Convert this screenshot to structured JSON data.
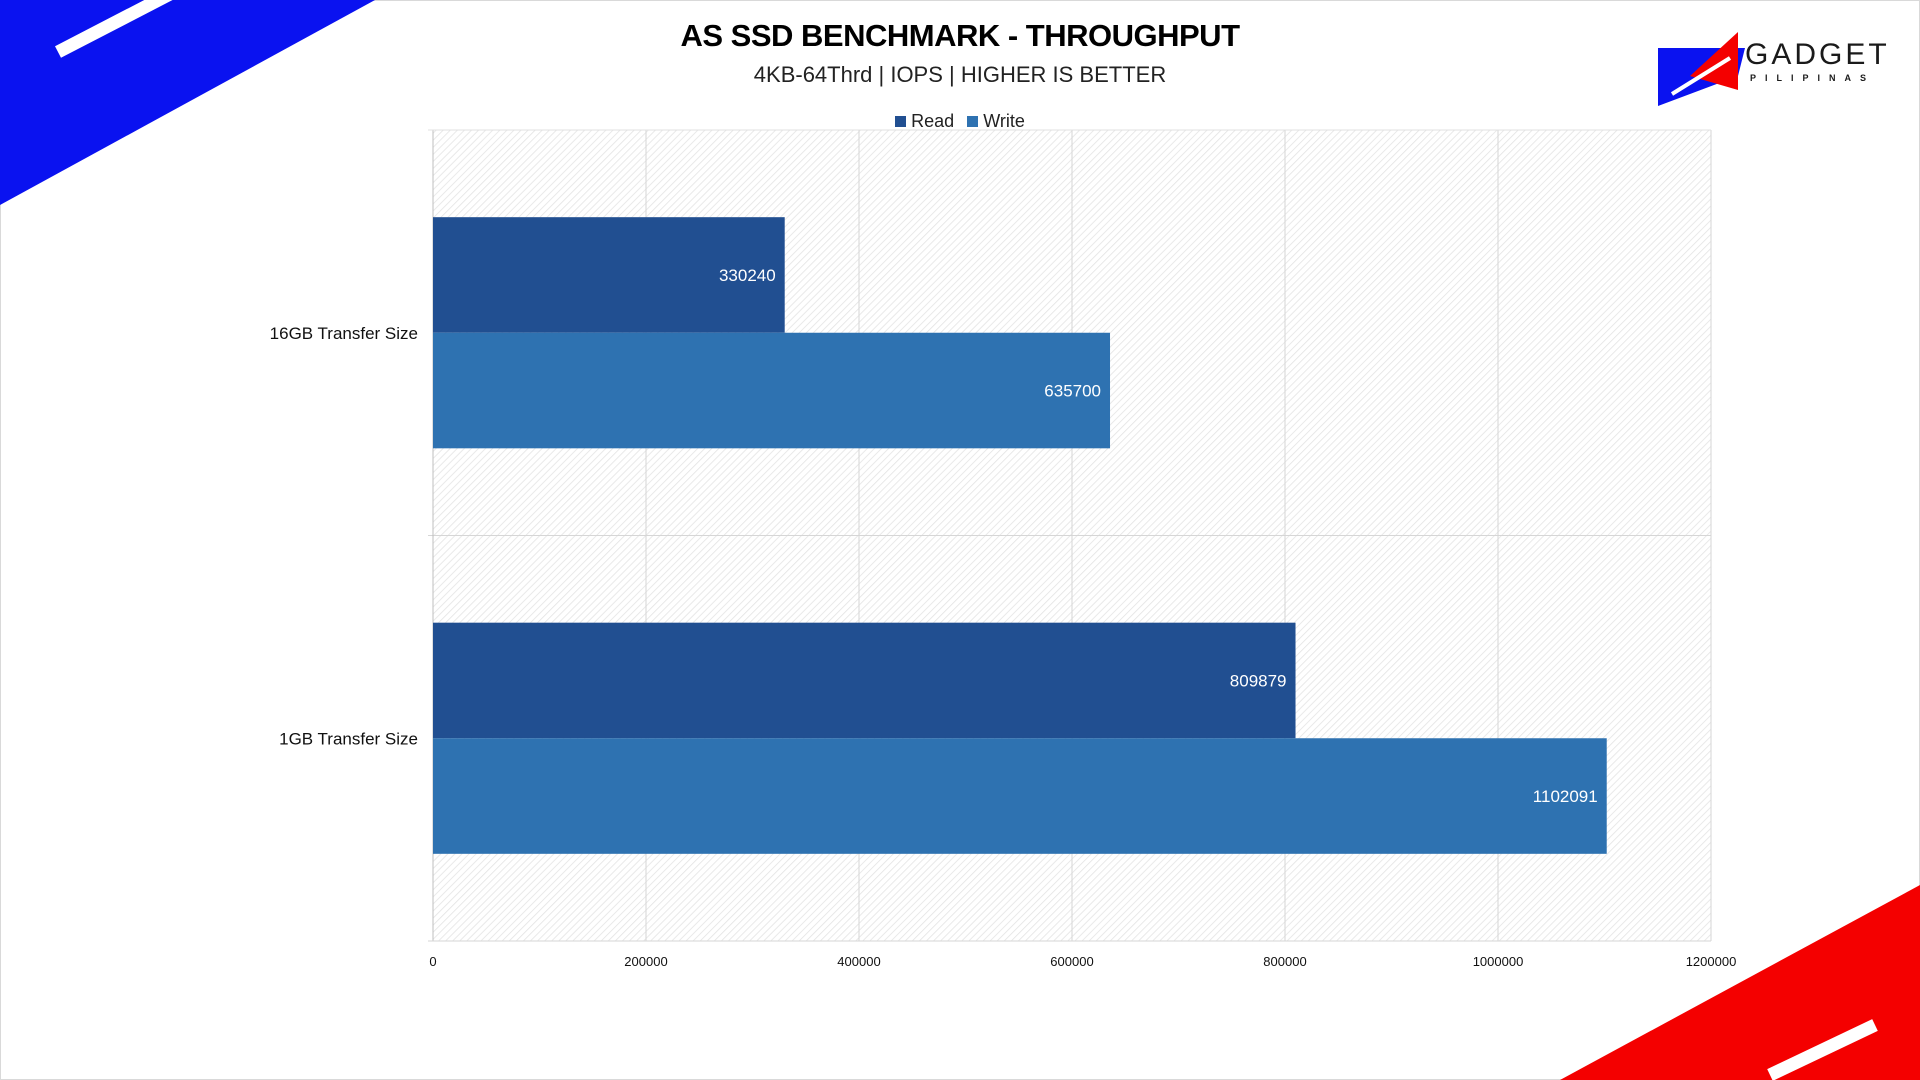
{
  "chart_data": {
    "type": "bar",
    "orientation": "horizontal",
    "title": "AS SSD BENCHMARK - THROUGHPUT",
    "subtitle": "4KB-64Thrd | IOPS | HIGHER IS BETTER",
    "categories": [
      "16GB Transfer Size",
      "1GB Transfer Size"
    ],
    "series": [
      {
        "name": "Read",
        "color": "#214f91",
        "values": [
          330240,
          809879
        ]
      },
      {
        "name": "Write",
        "color": "#2e72b1",
        "values": [
          635700,
          1102091
        ]
      }
    ],
    "xlim": [
      0,
      1200000
    ],
    "xticks": [
      "0",
      "200000",
      "400000",
      "600000",
      "800000",
      "1000000",
      "1200000"
    ],
    "xlabel": "",
    "ylabel": "",
    "grid": true,
    "legend": "top"
  },
  "logo": {
    "text": "GADGET",
    "subtext": "PILIPINAS"
  },
  "decor": {
    "blue": "#0a12f0",
    "red": "#f40000"
  }
}
